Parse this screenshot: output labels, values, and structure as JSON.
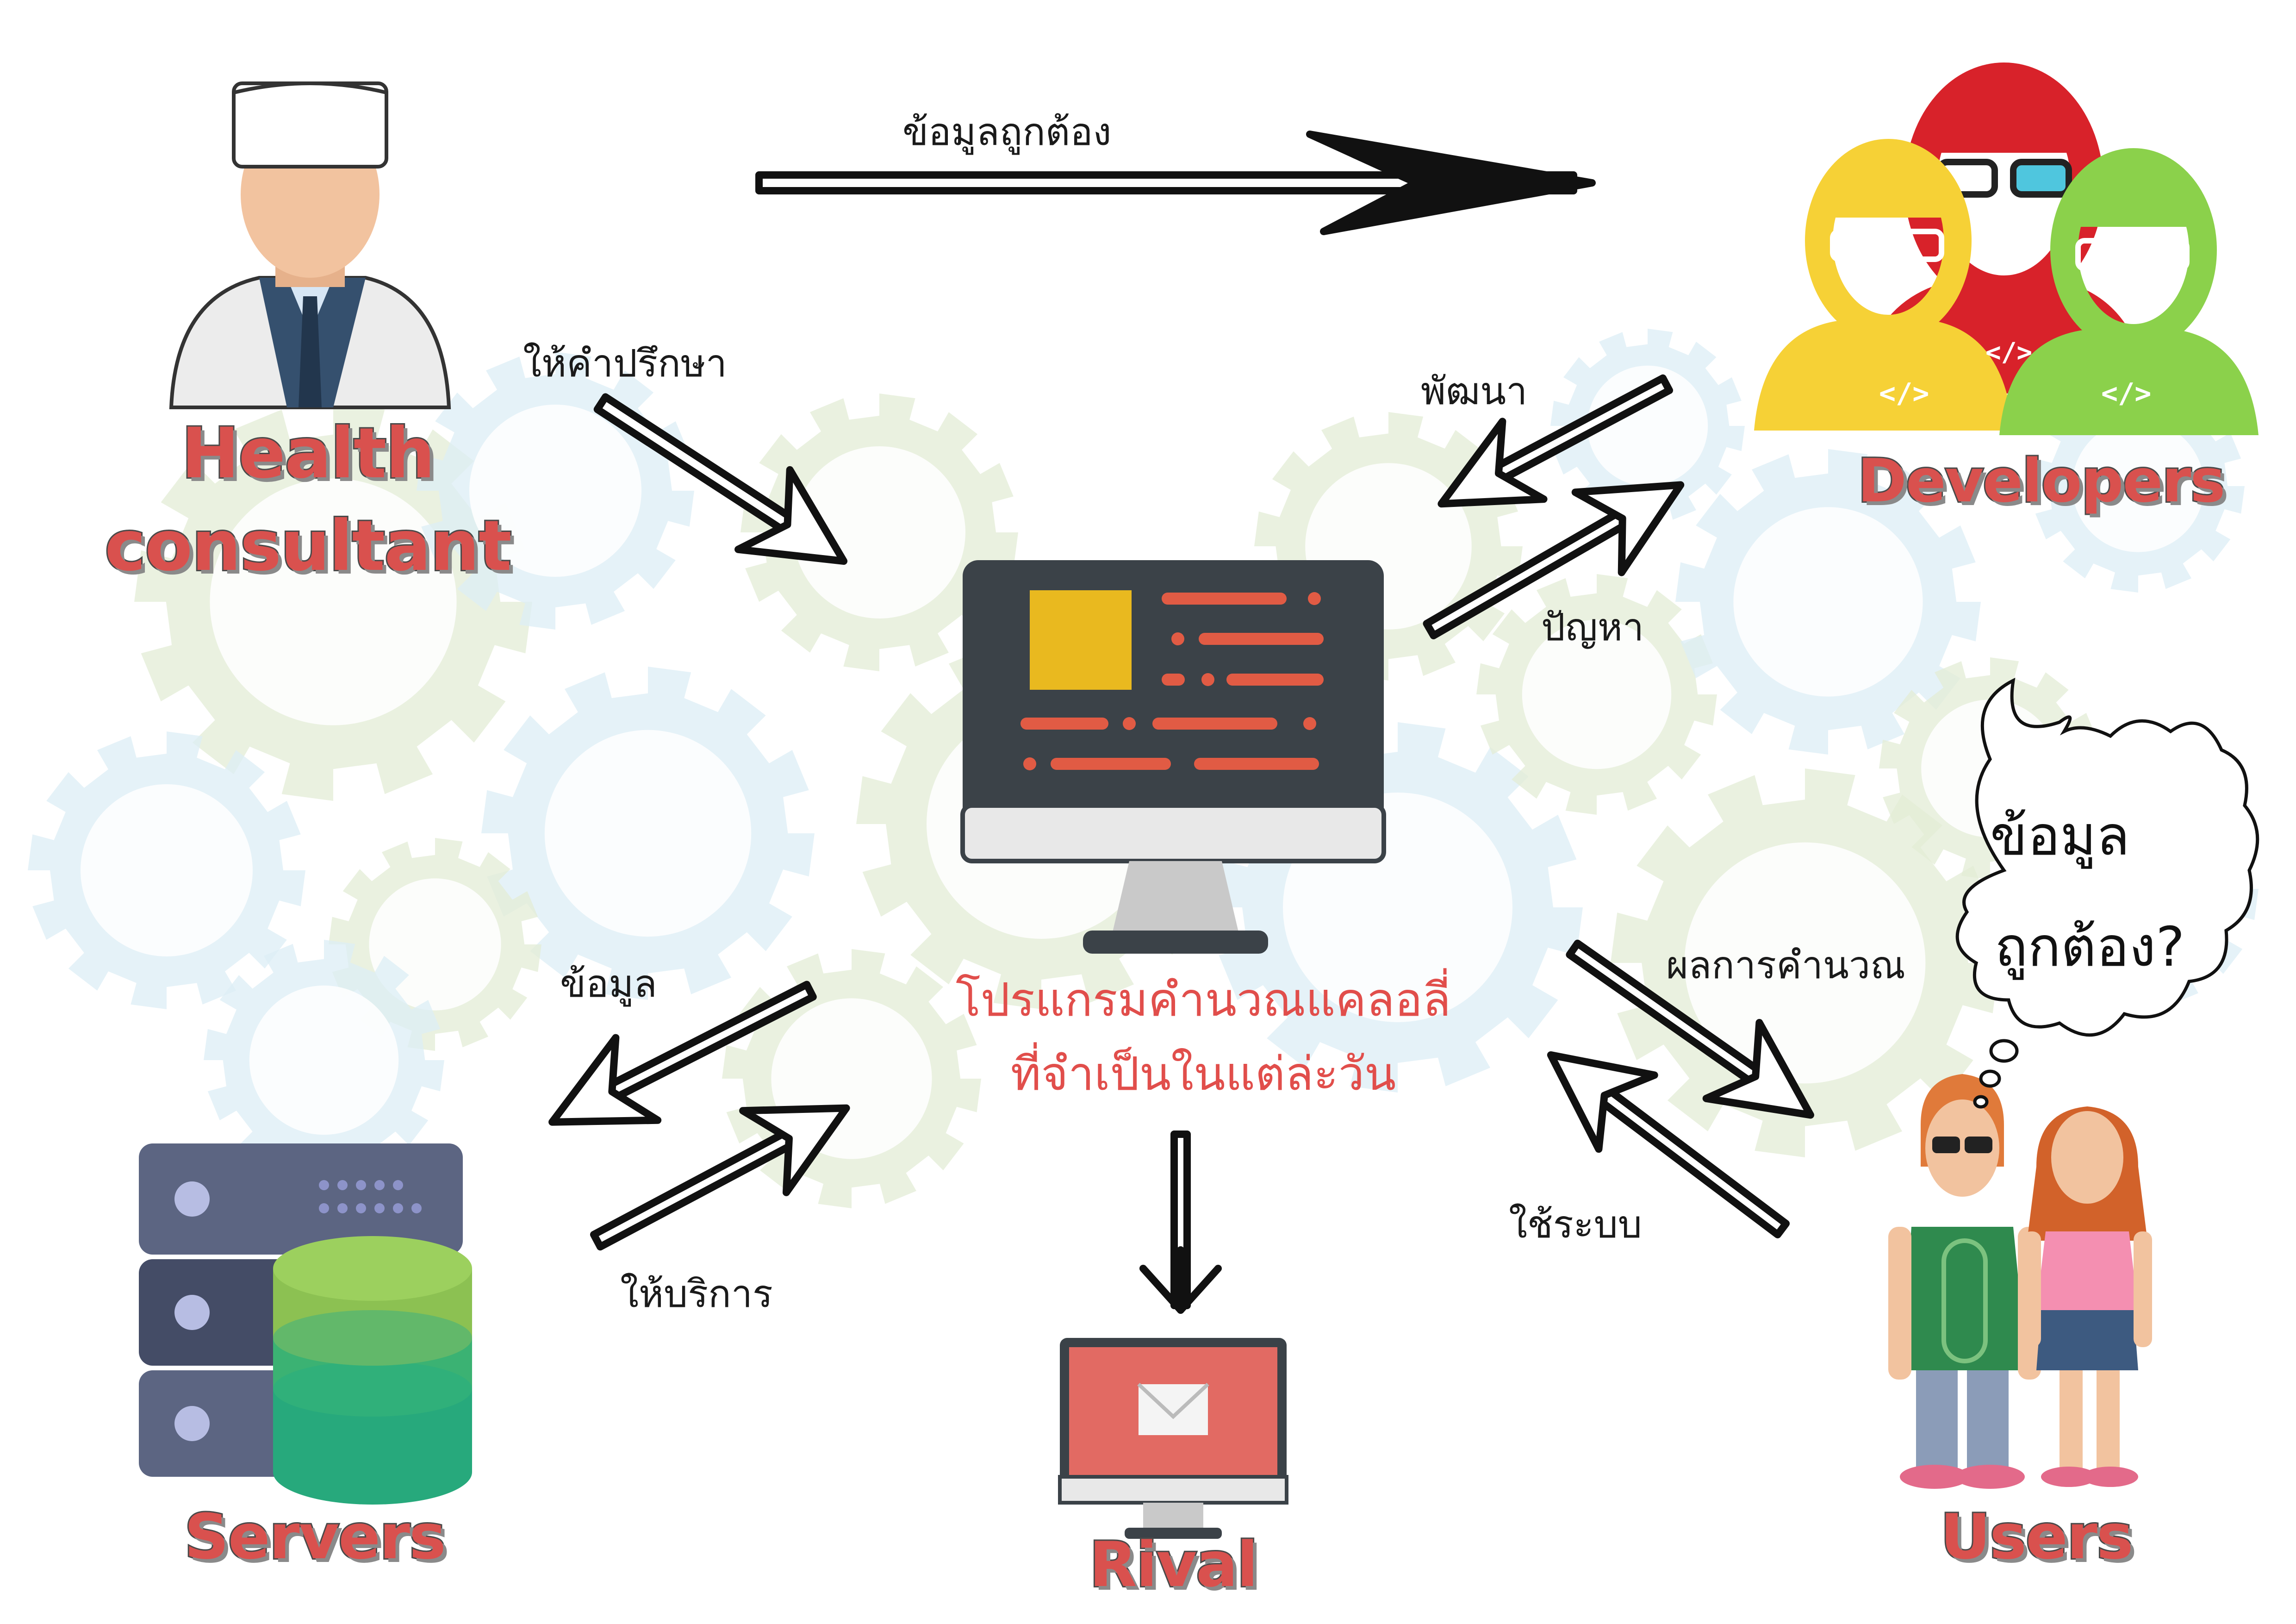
{
  "nodes": {
    "health_consultant": {
      "line1": "Health",
      "line2": "consultant"
    },
    "developers": {
      "label": "Developers"
    },
    "servers": {
      "label": "Servers"
    },
    "rival": {
      "label": "Rival"
    },
    "users": {
      "label": "Users"
    }
  },
  "center": {
    "line1": "โปรแกรมคำนวณแคลอลี่",
    "line2": "ที่จำเป็นในแต่ล่ะวัน"
  },
  "edges": {
    "consultant_to_developers": "ข้อมูลถูกต้อง",
    "consultant_to_program": "ให้คำปรึกษา",
    "developers_to_program": "พัฒนา",
    "program_to_developers": "ปัญหา",
    "program_to_servers": "ข้อมูล",
    "servers_to_program": "ให้บริการ",
    "program_to_users": "ผลการคำนวณ",
    "users_to_program": "ใช้ระบบ"
  },
  "thought_bubble": {
    "line1": "ข้อมูล",
    "line2": "ถูกต้อง?"
  },
  "icons": [
    "gear-background",
    "monitor-icon",
    "doctor-icon",
    "developers-icon",
    "server-database-icon",
    "rival-monitor-icon",
    "users-icon",
    "thought-bubble-icon"
  ],
  "colors": {
    "label_red": "#d9514e",
    "title_red": "#e14e4b",
    "gear_green": "#e3ecd6",
    "gear_blue": "#dcedf6",
    "monitor_dark": "#3b4248",
    "monitor_yellow": "#e9b91f",
    "dev_red": "#d8222a",
    "dev_yellow": "#f6d136",
    "dev_green": "#8bd14b",
    "db_green": "#27a97c"
  }
}
